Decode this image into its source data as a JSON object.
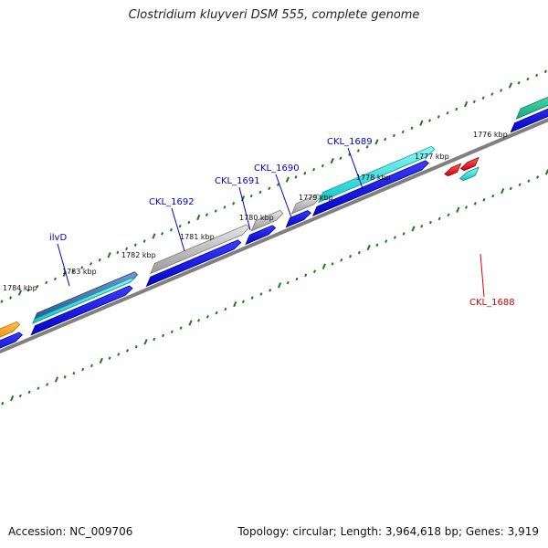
{
  "title": "Clostridium kluyveri DSM 555, complete genome",
  "footer": {
    "accession": "Accession: NC_009706",
    "summary": "Topology: circular; Length: 3,964,618 bp; Genes: 3,919"
  },
  "colors": {
    "backbone": "#808080",
    "tick": "#1a7a1a",
    "cds": "#0000ee",
    "gene_label": "#0000cc",
    "reverse_label": "#dd0000",
    "gene_grey": "#b8b8b8",
    "gene_cyan": "#17e3e3",
    "gene_teal": "#21c79a",
    "gene_blue": "#3b6fb0",
    "gene_orange": "#ff9900",
    "gene_red": "#ff0000",
    "gene_cyan_small": "#27c0c8"
  },
  "position_labels": [
    "1784 kbp",
    "1783 kbp",
    "1782 kbp",
    "1781 kbp",
    "1780 kbp",
    "1779 kbp",
    "1778 kbp",
    "1777 kbp",
    "1776 kbp"
  ],
  "gene_labels": [
    {
      "text": "ilvD",
      "strand": "forward"
    },
    {
      "text": "CKL_1692",
      "strand": "forward"
    },
    {
      "text": "CKL_1691",
      "strand": "forward"
    },
    {
      "text": "CKL_1690",
      "strand": "forward"
    },
    {
      "text": "CKL_1689",
      "strand": "forward"
    },
    {
      "text": "CKL_1688",
      "strand": "reverse"
    }
  ]
}
